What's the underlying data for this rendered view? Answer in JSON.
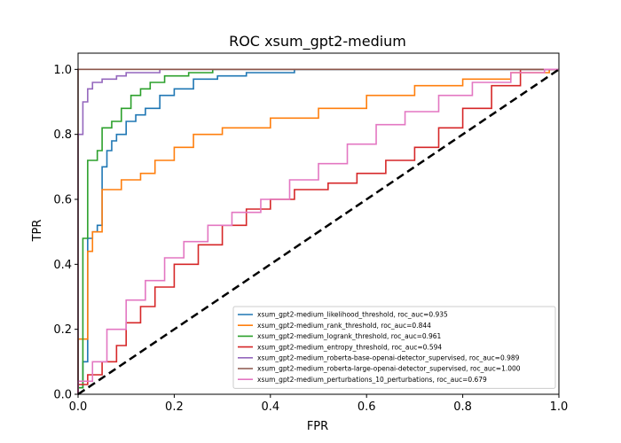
{
  "chart_data": {
    "type": "line",
    "title": "ROC xsum_gpt2-medium",
    "xlabel": "FPR",
    "ylabel": "TPR",
    "xlim": [
      0.0,
      1.0
    ],
    "ylim": [
      0.0,
      1.05
    ],
    "xticks": [
      "0.0",
      "0.2",
      "0.4",
      "0.6",
      "0.8",
      "1.0"
    ],
    "yticks": [
      "0.0",
      "0.2",
      "0.4",
      "0.6",
      "0.8",
      "1.0"
    ],
    "grid": false,
    "legend_position": "lower-right",
    "series": [
      {
        "name": "xsum_gpt2-medium_likelihood_threshold, roc_auc=0.935",
        "color": "#1f77b4",
        "x": [
          0.0,
          0.0,
          0.01,
          0.01,
          0.02,
          0.02,
          0.03,
          0.03,
          0.04,
          0.04,
          0.05,
          0.05,
          0.06,
          0.06,
          0.07,
          0.07,
          0.08,
          0.08,
          0.1,
          0.1,
          0.12,
          0.12,
          0.14,
          0.14,
          0.17,
          0.17,
          0.2,
          0.2,
          0.24,
          0.24,
          0.29,
          0.29,
          0.35,
          0.35,
          0.45,
          0.45,
          0.56,
          0.56,
          1.0
        ],
        "y": [
          0.0,
          0.02,
          0.02,
          0.1,
          0.1,
          0.48,
          0.48,
          0.5,
          0.5,
          0.52,
          0.52,
          0.7,
          0.7,
          0.75,
          0.75,
          0.78,
          0.78,
          0.8,
          0.8,
          0.84,
          0.84,
          0.86,
          0.86,
          0.88,
          0.88,
          0.92,
          0.92,
          0.94,
          0.94,
          0.97,
          0.97,
          0.98,
          0.98,
          0.99,
          0.99,
          1.0,
          1.0,
          1.0,
          1.0
        ]
      },
      {
        "name": "xsum_gpt2-medium_rank_threshold, roc_auc=0.844",
        "color": "#ff7f0e",
        "x": [
          0.0,
          0.0,
          0.02,
          0.02,
          0.03,
          0.03,
          0.05,
          0.05,
          0.09,
          0.09,
          0.13,
          0.13,
          0.16,
          0.16,
          0.2,
          0.2,
          0.24,
          0.24,
          0.3,
          0.3,
          0.4,
          0.4,
          0.5,
          0.5,
          0.6,
          0.6,
          0.7,
          0.7,
          0.8,
          0.8,
          0.9,
          0.9,
          0.98,
          0.98,
          1.0
        ],
        "y": [
          0.0,
          0.17,
          0.17,
          0.44,
          0.44,
          0.5,
          0.5,
          0.63,
          0.63,
          0.66,
          0.66,
          0.68,
          0.68,
          0.72,
          0.72,
          0.76,
          0.76,
          0.8,
          0.8,
          0.82,
          0.82,
          0.85,
          0.85,
          0.88,
          0.88,
          0.92,
          0.92,
          0.95,
          0.95,
          0.97,
          0.97,
          0.99,
          0.99,
          1.0,
          1.0
        ]
      },
      {
        "name": "xsum_gpt2-medium_logrank_threshold, roc_auc=0.961",
        "color": "#2ca02c",
        "x": [
          0.0,
          0.0,
          0.01,
          0.01,
          0.02,
          0.02,
          0.04,
          0.04,
          0.05,
          0.05,
          0.07,
          0.07,
          0.09,
          0.09,
          0.11,
          0.11,
          0.13,
          0.13,
          0.15,
          0.15,
          0.18,
          0.18,
          0.23,
          0.23,
          0.28,
          0.28,
          1.0
        ],
        "y": [
          0.0,
          0.02,
          0.02,
          0.48,
          0.48,
          0.72,
          0.72,
          0.75,
          0.75,
          0.82,
          0.82,
          0.84,
          0.84,
          0.88,
          0.88,
          0.92,
          0.92,
          0.94,
          0.94,
          0.96,
          0.96,
          0.98,
          0.98,
          0.99,
          0.99,
          1.0,
          1.0
        ]
      },
      {
        "name": "xsum_gpt2-medium_entropy_threshold, roc_auc=0.594",
        "color": "#d62728",
        "x": [
          0.0,
          0.0,
          0.02,
          0.02,
          0.05,
          0.05,
          0.08,
          0.08,
          0.1,
          0.1,
          0.13,
          0.13,
          0.16,
          0.16,
          0.2,
          0.2,
          0.25,
          0.25,
          0.3,
          0.3,
          0.35,
          0.35,
          0.4,
          0.4,
          0.45,
          0.45,
          0.52,
          0.52,
          0.58,
          0.58,
          0.64,
          0.64,
          0.7,
          0.7,
          0.75,
          0.75,
          0.8,
          0.8,
          0.86,
          0.86,
          0.92,
          0.92,
          1.0
        ],
        "y": [
          0.0,
          0.03,
          0.03,
          0.06,
          0.06,
          0.1,
          0.1,
          0.15,
          0.15,
          0.22,
          0.22,
          0.27,
          0.27,
          0.33,
          0.33,
          0.4,
          0.4,
          0.46,
          0.46,
          0.52,
          0.52,
          0.57,
          0.57,
          0.6,
          0.6,
          0.63,
          0.63,
          0.65,
          0.65,
          0.68,
          0.68,
          0.72,
          0.72,
          0.76,
          0.76,
          0.82,
          0.82,
          0.88,
          0.88,
          0.95,
          0.95,
          1.0,
          1.0
        ]
      },
      {
        "name": "xsum_gpt2-medium_roberta-base-openai-detector_supervised, roc_auc=0.989",
        "color": "#9467bd",
        "x": [
          0.0,
          0.0,
          0.01,
          0.01,
          0.02,
          0.02,
          0.03,
          0.03,
          0.05,
          0.05,
          0.08,
          0.08,
          0.1,
          0.1,
          0.17,
          0.17,
          1.0
        ],
        "y": [
          0.0,
          0.8,
          0.8,
          0.9,
          0.9,
          0.94,
          0.94,
          0.96,
          0.96,
          0.97,
          0.97,
          0.98,
          0.98,
          0.99,
          0.99,
          1.0,
          1.0
        ]
      },
      {
        "name": "xsum_gpt2-medium_roberta-large-openai-detector_supervised, roc_auc=1.000",
        "color": "#8c564b",
        "x": [
          0.0,
          0.0,
          1.0
        ],
        "y": [
          0.0,
          1.0,
          1.0
        ]
      },
      {
        "name": "xsum_gpt2-medium_perturbations_10_perturbations, roc_auc=0.679",
        "color": "#e377c2",
        "x": [
          0.0,
          0.0,
          0.03,
          0.03,
          0.06,
          0.06,
          0.1,
          0.1,
          0.14,
          0.14,
          0.18,
          0.18,
          0.22,
          0.22,
          0.27,
          0.27,
          0.32,
          0.32,
          0.38,
          0.38,
          0.44,
          0.44,
          0.5,
          0.5,
          0.56,
          0.56,
          0.62,
          0.62,
          0.68,
          0.68,
          0.75,
          0.75,
          0.82,
          0.82,
          0.9,
          0.9,
          0.97,
          0.97,
          1.0
        ],
        "y": [
          0.0,
          0.04,
          0.04,
          0.1,
          0.1,
          0.2,
          0.2,
          0.29,
          0.29,
          0.35,
          0.35,
          0.42,
          0.42,
          0.47,
          0.47,
          0.52,
          0.52,
          0.56,
          0.56,
          0.6,
          0.6,
          0.66,
          0.66,
          0.71,
          0.71,
          0.77,
          0.77,
          0.83,
          0.83,
          0.87,
          0.87,
          0.92,
          0.92,
          0.96,
          0.96,
          0.99,
          0.99,
          1.0,
          1.0
        ]
      }
    ],
    "reference_line": {
      "x": [
        0.0,
        1.0
      ],
      "y": [
        0.0,
        1.0
      ],
      "color": "#000000",
      "style": "dashed"
    }
  }
}
